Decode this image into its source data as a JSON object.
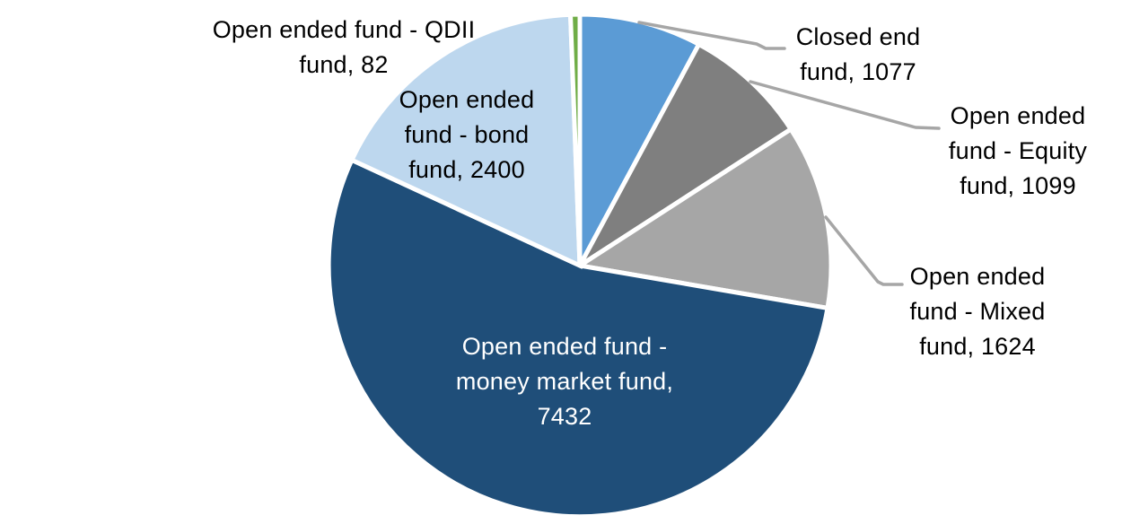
{
  "chart_data": {
    "type": "pie",
    "direction": "clockwise",
    "start_angle_deg": 0,
    "total": 13714,
    "slices": [
      {
        "key": "closed-end-fund",
        "label": "Closed end fund",
        "value": 1077,
        "color": "#5B9BD5"
      },
      {
        "key": "equity-fund",
        "label": "Open ended fund - Equity fund",
        "value": 1099,
        "color": "#7F7F7F"
      },
      {
        "key": "mixed-fund",
        "label": "Open ended fund - Mixed fund",
        "value": 1624,
        "color": "#A6A6A6"
      },
      {
        "key": "money-market-fund",
        "label": "Open ended fund - money market fund",
        "value": 7432,
        "color": "#1F4E79"
      },
      {
        "key": "bond-fund",
        "label": "Open ended fund - bond fund",
        "value": 2400,
        "color": "#BDD7EE"
      },
      {
        "key": "qdii-fund",
        "label": "Open ended fund - QDII fund",
        "value": 82,
        "color": "#70AD47"
      }
    ],
    "data_labels": {
      "qdii": "Open ended fund - QDII\nfund, 82",
      "bond": "Open ended\nfund - bond\nfund, 2400",
      "closed": "Closed end\nfund, 1077",
      "equity": "Open ended\nfund - Equity\nfund, 1099",
      "mixed": "Open ended\nfund - Mixed\nfund, 1624",
      "money": "Open ended fund -\nmoney market fund,\n7432"
    },
    "style": {
      "leader_line_color": "#A6A6A6",
      "slice_border_color": "#FFFFFF",
      "label_color": "#000000",
      "inside_label_color": "#FFFFFF",
      "background": "#FFFFFF"
    },
    "legend": "none",
    "grid": "off"
  }
}
